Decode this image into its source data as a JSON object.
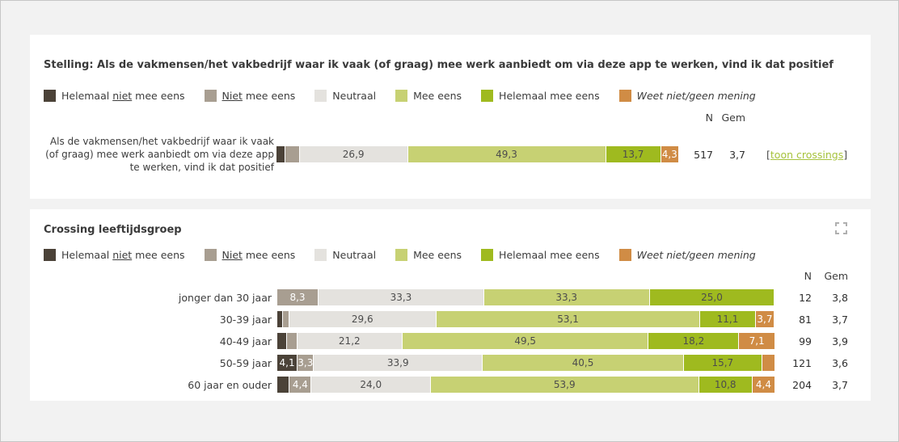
{
  "colors": {
    "helemaal_niet": "#4b4238",
    "niet": "#a89e91",
    "neutraal": "#e4e2de",
    "mee_eens": "#c7d173",
    "helemaal_mee_eens": "#9fba1f",
    "weet_niet": "#d08c45",
    "link": "#a6c23c",
    "expand_icon": "#b0b0b0"
  },
  "legend": {
    "items": [
      {
        "key": "helemaal_niet",
        "italic": false,
        "parts": [
          {
            "t": "Helemaal ",
            "u": false
          },
          {
            "t": "niet",
            "u": true
          },
          {
            "t": " mee eens",
            "u": false
          }
        ]
      },
      {
        "key": "niet",
        "italic": false,
        "parts": [
          {
            "t": "Niet",
            "u": true
          },
          {
            "t": " mee eens",
            "u": false
          }
        ]
      },
      {
        "key": "neutraal",
        "italic": false,
        "parts": [
          {
            "t": "Neutraal",
            "u": false
          }
        ]
      },
      {
        "key": "mee_eens",
        "italic": false,
        "parts": [
          {
            "t": "Mee eens",
            "u": false
          }
        ]
      },
      {
        "key": "helemaal_mee_eens",
        "italic": false,
        "parts": [
          {
            "t": "Helemaal mee eens",
            "u": false
          }
        ]
      },
      {
        "key": "weet_niet",
        "italic": true,
        "parts": [
          {
            "t": "Weet niet/geen mening",
            "u": false
          }
        ]
      }
    ]
  },
  "columns": {
    "n": "N",
    "gem": "Gem"
  },
  "panel1": {
    "title": "Stelling: Als de vakmensen/het vakbedrijf waar ik vaak (of graag) mee werk aanbiedt om via deze app te werken, vind ik dat positief",
    "link_open": "[",
    "link_text": "toon crossings",
    "link_close": "]"
  },
  "panel2": {
    "title": "Crossing leeftijdsgroep"
  },
  "chart_data": [
    {
      "type": "bar",
      "subtype": "stacked-horizontal-percent",
      "title": "Stelling: Als de vakmensen/het vakbedrijf waar ik vaak (of graag) mee werk aanbiedt om via deze app te werken, vind ik dat positief",
      "xlim": [
        0,
        100
      ],
      "unlabeled_small_segments_estimated": true,
      "categories": [
        "Als de vakmensen/het vakbedrijf waar ik vaak (of graag) mee werk aanbiedt om via deze app te werken, vind ik dat positief"
      ],
      "series": [
        {
          "name": "Helemaal niet mee eens",
          "key": "helemaal_niet",
          "label_light": true,
          "values": [
            2.3
          ],
          "labels": [
            ""
          ]
        },
        {
          "name": "Niet mee eens",
          "key": "niet",
          "label_light": true,
          "values": [
            3.5
          ],
          "labels": [
            ""
          ]
        },
        {
          "name": "Neutraal",
          "key": "neutraal",
          "label_light": false,
          "values": [
            26.9
          ],
          "labels": [
            "26,9"
          ]
        },
        {
          "name": "Mee eens",
          "key": "mee_eens",
          "label_light": false,
          "values": [
            49.3
          ],
          "labels": [
            "49,3"
          ]
        },
        {
          "name": "Helemaal mee eens",
          "key": "helemaal_mee_eens",
          "label_light": false,
          "values": [
            13.7
          ],
          "labels": [
            "13,7"
          ]
        },
        {
          "name": "Weet niet/geen mening",
          "key": "weet_niet",
          "label_light": true,
          "values": [
            4.3
          ],
          "labels": [
            "4,3"
          ]
        }
      ],
      "n": [
        517
      ],
      "gem": [
        "3,7"
      ]
    },
    {
      "type": "bar",
      "subtype": "stacked-horizontal-percent",
      "title": "Crossing leeftijdsgroep",
      "xlim": [
        0,
        100
      ],
      "unlabeled_small_segments_estimated": true,
      "categories": [
        "jonger dan 30 jaar",
        "30-39 jaar",
        "40-49 jaar",
        "50-59 jaar",
        "60 jaar en ouder"
      ],
      "series": [
        {
          "name": "Helemaal niet mee eens",
          "key": "helemaal_niet",
          "label_light": true,
          "values": [
            0,
            1.2,
            2.0,
            4.1,
            2.5
          ],
          "labels": [
            "",
            "",
            "",
            "4,1",
            ""
          ]
        },
        {
          "name": "Niet mee eens",
          "key": "niet",
          "label_light": true,
          "values": [
            8.3,
            1.2,
            2.0,
            3.3,
            4.4
          ],
          "labels": [
            "8,3",
            "",
            "",
            "3,3",
            "4,4"
          ]
        },
        {
          "name": "Neutraal",
          "key": "neutraal",
          "label_light": false,
          "values": [
            33.3,
            29.6,
            21.2,
            33.9,
            24.0
          ],
          "labels": [
            "33,3",
            "29,6",
            "21,2",
            "33,9",
            "24,0"
          ]
        },
        {
          "name": "Mee eens",
          "key": "mee_eens",
          "label_light": false,
          "values": [
            33.3,
            53.1,
            49.5,
            40.5,
            53.9
          ],
          "labels": [
            "33,3",
            "53,1",
            "49,5",
            "40,5",
            "53,9"
          ]
        },
        {
          "name": "Helemaal mee eens",
          "key": "helemaal_mee_eens",
          "label_light": false,
          "values": [
            25.0,
            11.1,
            18.2,
            15.7,
            10.8
          ],
          "labels": [
            "25,0",
            "11,1",
            "18,2",
            "15,7",
            "10,8"
          ]
        },
        {
          "name": "Weet niet/geen mening",
          "key": "weet_niet",
          "label_light": true,
          "values": [
            0,
            3.7,
            7.1,
            2.5,
            4.4
          ],
          "labels": [
            "",
            "3,7",
            "7,1",
            "",
            "4,4"
          ]
        }
      ],
      "n": [
        12,
        81,
        99,
        121,
        204
      ],
      "gem": [
        "3,8",
        "3,7",
        "3,9",
        "3,6",
        "3,7"
      ]
    }
  ]
}
